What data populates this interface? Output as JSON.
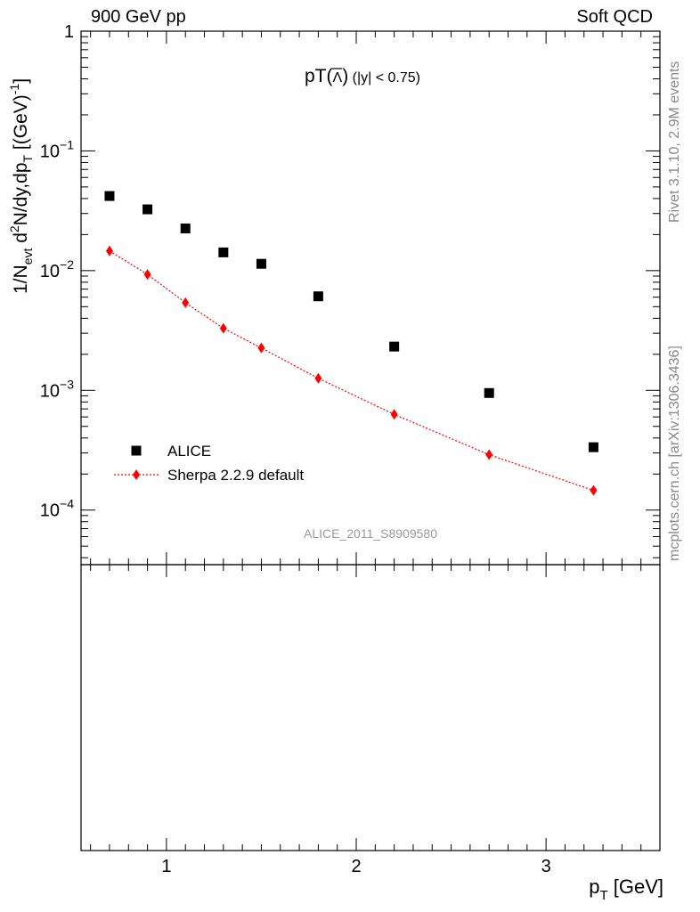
{
  "header": {
    "left": "900 GeV pp",
    "right": "Soft QCD"
  },
  "side_text": {
    "rivet": "Rivet 3.1.10,  2.9M events",
    "mcplots": "mcplots.cern.ch [arXiv:1306.3436]"
  },
  "chart_data": {
    "type": "scatter",
    "title": "pT(Λ̄) (|y| < 0.75)",
    "title_parts": {
      "main": "pT(",
      "sym": "Λ",
      "close": ")",
      "cut": "(|y| < 0.75)"
    },
    "analysis_label": "ALICE_2011_S8909580",
    "ylabel": "1/N_evt d²N/dy,dp_T [(GeV)⁻¹]",
    "ylabel_parts": {
      "a": "1/N",
      "a_sub": "evt",
      "b": " d",
      "b_sup": "2",
      "c": "N/dy,dp",
      "c_sub": "T",
      "d": " [(GeV)",
      "d_sup": "-1",
      "e": "]"
    },
    "xlabel": "p_T [GeV]",
    "xlabel_parts": {
      "a": "p",
      "a_sub": "T",
      "b": " [GeV]"
    },
    "x_scale": "linear",
    "y_scale": "log",
    "xlim": [
      0.55,
      3.6
    ],
    "ylim": [
      3.5e-05,
      1
    ],
    "x_ticks": [
      1,
      2,
      3
    ],
    "x_tick_labels": [
      "1",
      "2",
      "3"
    ],
    "y_tick_labels": [
      {
        "value": 1,
        "base": "1",
        "exp": ""
      },
      {
        "value": 0.1,
        "base": "10",
        "exp": "−1"
      },
      {
        "value": 0.01,
        "base": "10",
        "exp": "−2"
      },
      {
        "value": 0.001,
        "base": "10",
        "exp": "−3"
      },
      {
        "value": 0.0001,
        "base": "10",
        "exp": "−4"
      }
    ],
    "legend_position": "lower-left",
    "grid": false,
    "series": [
      {
        "name": "ALICE",
        "marker": "square",
        "color": "#000000",
        "line": false,
        "x": [
          0.7,
          0.9,
          1.1,
          1.3,
          1.5,
          1.8,
          2.2,
          2.7,
          3.25
        ],
        "y": [
          0.042,
          0.0325,
          0.0225,
          0.0142,
          0.0114,
          0.0061,
          0.00232,
          0.00095,
          0.000335
        ]
      },
      {
        "name": "Sherpa 2.2.9 default",
        "marker": "diamond",
        "color": "#ff0000",
        "line": "dotted",
        "x": [
          0.7,
          0.9,
          1.1,
          1.3,
          1.5,
          1.8,
          2.2,
          2.7,
          3.25
        ],
        "y": [
          0.0146,
          0.0093,
          0.0054,
          0.0033,
          0.00226,
          0.00126,
          0.00063,
          0.00029,
          0.000146
        ]
      }
    ]
  }
}
